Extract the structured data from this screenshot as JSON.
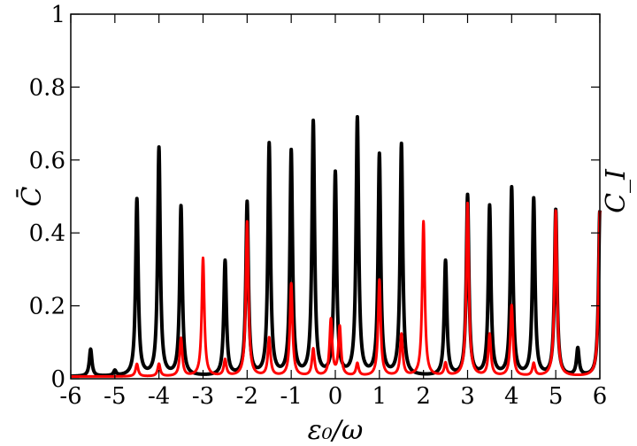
{
  "chart_data": {
    "type": "line",
    "xlabel": "ε₀/ω",
    "ylabel": "C̄",
    "ylabel_right": "C_I",
    "xlim": [
      -6,
      6
    ],
    "ylim": [
      0,
      1
    ],
    "xticks": [
      "-6",
      "-5",
      "-4",
      "-3",
      "-2",
      "-1",
      "0",
      "1",
      "2",
      "3",
      "4",
      "5",
      "6"
    ],
    "yticks": [
      "0",
      "0.2",
      "0.4",
      "0.6",
      "0.8",
      "1"
    ],
    "grid": false,
    "series": [
      {
        "color": "#000000",
        "peaks": [
          {
            "x": -5.55,
            "y": 0.08
          },
          {
            "x": -5.0,
            "y": 0.02
          },
          {
            "x": -4.5,
            "y": 0.49
          },
          {
            "x": -4.0,
            "y": 0.63
          },
          {
            "x": -3.5,
            "y": 0.47
          },
          {
            "x": -2.5,
            "y": 0.32
          },
          {
            "x": -2.0,
            "y": 0.48
          },
          {
            "x": -1.5,
            "y": 0.64
          },
          {
            "x": -1.0,
            "y": 0.62
          },
          {
            "x": -0.5,
            "y": 0.7
          },
          {
            "x": 0.0,
            "y": 0.56
          },
          {
            "x": 0.5,
            "y": 0.71
          },
          {
            "x": 1.0,
            "y": 0.61
          },
          {
            "x": 1.5,
            "y": 0.64
          },
          {
            "x": 2.5,
            "y": 0.32
          },
          {
            "x": 3.0,
            "y": 0.5
          },
          {
            "x": 3.5,
            "y": 0.47
          },
          {
            "x": 4.0,
            "y": 0.52
          },
          {
            "x": 4.5,
            "y": 0.49
          },
          {
            "x": 5.0,
            "y": 0.46
          },
          {
            "x": 5.5,
            "y": 0.08
          },
          {
            "x": 6.0,
            "y": 0.46
          }
        ]
      },
      {
        "color": "#ff0000",
        "peaks": [
          {
            "x": -4.5,
            "y": 0.04
          },
          {
            "x": -4.0,
            "y": 0.04
          },
          {
            "x": -3.5,
            "y": 0.11
          },
          {
            "x": -3.0,
            "y": 0.33
          },
          {
            "x": -2.5,
            "y": 0.05
          },
          {
            "x": -2.0,
            "y": 0.43
          },
          {
            "x": -1.5,
            "y": 0.11
          },
          {
            "x": -1.0,
            "y": 0.26
          },
          {
            "x": -0.5,
            "y": 0.08
          },
          {
            "x": -0.1,
            "y": 0.16
          },
          {
            "x": 0.1,
            "y": 0.14
          },
          {
            "x": 0.5,
            "y": 0.04
          },
          {
            "x": 1.0,
            "y": 0.27
          },
          {
            "x": 1.5,
            "y": 0.12
          },
          {
            "x": 2.0,
            "y": 0.43
          },
          {
            "x": 2.5,
            "y": 0.04
          },
          {
            "x": 3.0,
            "y": 0.48
          },
          {
            "x": 3.5,
            "y": 0.12
          },
          {
            "x": 4.0,
            "y": 0.2
          },
          {
            "x": 4.5,
            "y": 0.04
          },
          {
            "x": 5.0,
            "y": 0.46
          },
          {
            "x": 6.0,
            "y": 0.46
          }
        ]
      }
    ]
  }
}
